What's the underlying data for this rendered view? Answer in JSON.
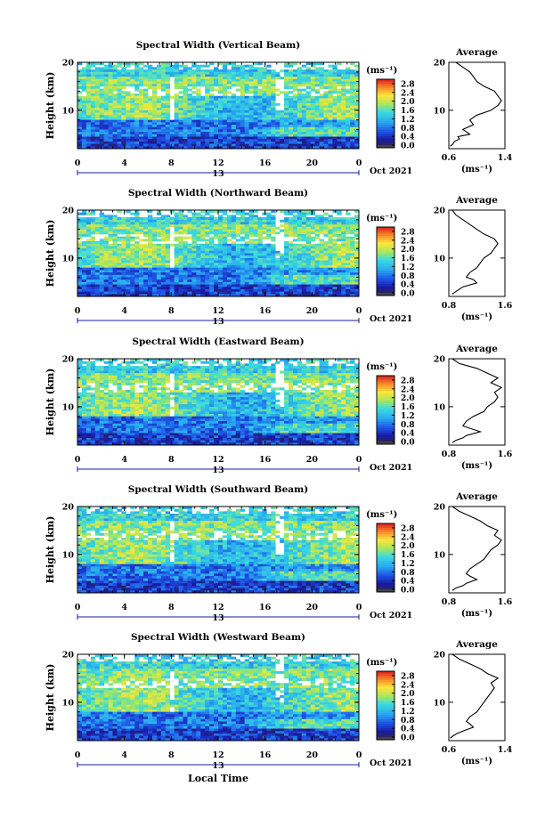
{
  "figure": {
    "footer": "Local Time"
  },
  "chart_data": [
    {
      "type": "heatmap",
      "title": "Spectral Width (Vertical Beam)",
      "ylabel": "Height (km)",
      "ylim": [
        2,
        20
      ],
      "yticks": [
        "20",
        "10"
      ],
      "xlim": [
        0,
        24
      ],
      "xticks": [
        "0",
        "4",
        "8",
        "12",
        "16",
        "20",
        "0"
      ],
      "date_label": "13",
      "month_label": "Oct 2021",
      "colorbar": {
        "unit": "(ms⁻¹)",
        "ticks": [
          "2.8",
          "2.4",
          "2.0",
          "1.6",
          "1.2",
          "0.8",
          "0.4",
          "0.0"
        ],
        "range": [
          0.0,
          3.0
        ]
      },
      "average": {
        "title": "Average",
        "xlabel": "(ms⁻¹)",
        "xticks": [
          "0.6",
          "1.4"
        ],
        "xlim": [
          0.6,
          1.4
        ],
        "yticks": [
          "20",
          "10"
        ],
        "ylim": [
          2,
          20
        ],
        "profile": [
          [
            0.62,
            2.5
          ],
          [
            0.66,
            3
          ],
          [
            0.68,
            3.5
          ],
          [
            0.75,
            4
          ],
          [
            0.73,
            4.5
          ],
          [
            0.9,
            5
          ],
          [
            0.85,
            5.5
          ],
          [
            0.8,
            6
          ],
          [
            0.95,
            7
          ],
          [
            0.9,
            8
          ],
          [
            1.0,
            9
          ],
          [
            1.2,
            10
          ],
          [
            1.3,
            11
          ],
          [
            1.35,
            12
          ],
          [
            1.3,
            13
          ],
          [
            1.25,
            14
          ],
          [
            1.1,
            15
          ],
          [
            1.0,
            16
          ],
          [
            0.95,
            17
          ],
          [
            0.9,
            18
          ],
          [
            0.8,
            19
          ],
          [
            0.7,
            20
          ]
        ]
      }
    },
    {
      "type": "heatmap",
      "title": "Spectral Width (Northward Beam)",
      "ylabel": "Height (km)",
      "ylim": [
        2,
        20
      ],
      "yticks": [
        "20",
        "10"
      ],
      "xlim": [
        0,
        24
      ],
      "xticks": [
        "0",
        "4",
        "8",
        "12",
        "16",
        "20",
        "0"
      ],
      "date_label": "13",
      "month_label": "Oct 2021",
      "colorbar": {
        "unit": "(ms⁻¹)",
        "ticks": [
          "2.8",
          "2.4",
          "2.0",
          "1.6",
          "1.2",
          "0.8",
          "0.4",
          "0.0"
        ],
        "range": [
          0.0,
          3.0
        ]
      },
      "average": {
        "title": "Average",
        "xlabel": "(ms⁻¹)",
        "xticks": [
          "0.8",
          "1.6"
        ],
        "xlim": [
          0.8,
          1.6
        ],
        "yticks": [
          "20",
          "10"
        ],
        "ylim": [
          2,
          20
        ],
        "profile": [
          [
            0.85,
            2.5
          ],
          [
            0.9,
            3
          ],
          [
            0.95,
            3.5
          ],
          [
            1.0,
            4
          ],
          [
            1.2,
            4.8
          ],
          [
            1.15,
            5.5
          ],
          [
            1.05,
            6
          ],
          [
            1.1,
            7
          ],
          [
            1.2,
            8
          ],
          [
            1.25,
            9
          ],
          [
            1.3,
            10
          ],
          [
            1.4,
            11
          ],
          [
            1.45,
            12
          ],
          [
            1.5,
            13
          ],
          [
            1.45,
            14
          ],
          [
            1.3,
            15
          ],
          [
            1.2,
            16
          ],
          [
            1.1,
            17
          ],
          [
            1.0,
            18
          ],
          [
            0.9,
            19
          ],
          [
            0.85,
            20
          ]
        ]
      }
    },
    {
      "type": "heatmap",
      "title": "Spectral Width (Eastward Beam)",
      "ylabel": "Height (km)",
      "ylim": [
        2,
        20
      ],
      "yticks": [
        "20",
        "10"
      ],
      "xlim": [
        0,
        24
      ],
      "xticks": [
        "0",
        "4",
        "8",
        "12",
        "16",
        "20",
        "0"
      ],
      "date_label": "13",
      "month_label": "Oct 2021",
      "colorbar": {
        "unit": "(ms⁻¹)",
        "ticks": [
          "2.8",
          "2.4",
          "2.0",
          "1.6",
          "1.2",
          "0.8",
          "0.4",
          "0.0"
        ],
        "range": [
          0.0,
          3.0
        ]
      },
      "average": {
        "title": "Average",
        "xlabel": "(ms⁻¹)",
        "xticks": [
          "0.8",
          "1.6"
        ],
        "xlim": [
          0.8,
          1.6
        ],
        "yticks": [
          "20",
          "10"
        ],
        "ylim": [
          2,
          20
        ],
        "profile": [
          [
            0.85,
            2.5
          ],
          [
            0.9,
            3
          ],
          [
            1.0,
            3.5
          ],
          [
            1.05,
            4
          ],
          [
            1.25,
            4.8
          ],
          [
            1.1,
            5.5
          ],
          [
            1.0,
            6
          ],
          [
            1.05,
            7
          ],
          [
            1.15,
            8
          ],
          [
            1.3,
            9
          ],
          [
            1.35,
            10
          ],
          [
            1.45,
            11
          ],
          [
            1.5,
            12
          ],
          [
            1.45,
            13
          ],
          [
            1.55,
            14
          ],
          [
            1.4,
            15
          ],
          [
            1.5,
            16
          ],
          [
            1.35,
            17
          ],
          [
            1.2,
            18
          ],
          [
            0.95,
            19
          ],
          [
            0.85,
            20
          ]
        ]
      }
    },
    {
      "type": "heatmap",
      "title": "Spectral Width (Southward Beam)",
      "ylabel": "Height (km)",
      "ylim": [
        2,
        20
      ],
      "yticks": [
        "20",
        "10"
      ],
      "xlim": [
        0,
        24
      ],
      "xticks": [
        "0",
        "4",
        "8",
        "12",
        "16",
        "20",
        "0"
      ],
      "date_label": "13",
      "month_label": "Oct 2021",
      "colorbar": {
        "unit": "(ms⁻¹)",
        "ticks": [
          "2.8",
          "2.4",
          "2.0",
          "1.6",
          "1.2",
          "0.8",
          "0.4",
          "0.0"
        ],
        "range": [
          0.0,
          3.0
        ]
      },
      "average": {
        "title": "Average",
        "xlabel": "(ms⁻¹)",
        "xticks": [
          "0.8",
          "1.6"
        ],
        "xlim": [
          0.8,
          1.6
        ],
        "yticks": [
          "20",
          "10"
        ],
        "ylim": [
          2,
          20
        ],
        "profile": [
          [
            0.85,
            2.5
          ],
          [
            0.9,
            3
          ],
          [
            1.0,
            3.5
          ],
          [
            1.05,
            4
          ],
          [
            1.2,
            4.8
          ],
          [
            1.1,
            5.5
          ],
          [
            1.05,
            6
          ],
          [
            1.1,
            7
          ],
          [
            1.2,
            8
          ],
          [
            1.3,
            9
          ],
          [
            1.35,
            10
          ],
          [
            1.4,
            11
          ],
          [
            1.5,
            12
          ],
          [
            1.55,
            13
          ],
          [
            1.45,
            14
          ],
          [
            1.5,
            15
          ],
          [
            1.35,
            16
          ],
          [
            1.25,
            17
          ],
          [
            1.1,
            18
          ],
          [
            0.95,
            19
          ],
          [
            0.85,
            20
          ]
        ]
      }
    },
    {
      "type": "heatmap",
      "title": "Spectral Width (Westward Beam)",
      "ylabel": "Height (km)",
      "ylim": [
        2,
        20
      ],
      "yticks": [
        "20",
        "10"
      ],
      "xlim": [
        0,
        24
      ],
      "xticks": [
        "0",
        "4",
        "8",
        "12",
        "16",
        "20",
        "0"
      ],
      "date_label": "13",
      "month_label": "Oct 2021",
      "colorbar": {
        "unit": "(ms⁻¹)",
        "ticks": [
          "2.8",
          "2.4",
          "2.0",
          "1.6",
          "1.2",
          "0.8",
          "0.4",
          "0.0"
        ],
        "range": [
          0.0,
          3.0
        ]
      },
      "average": {
        "title": "Average",
        "xlabel": "(ms⁻¹)",
        "xticks": [
          "0.6",
          "1.4"
        ],
        "xlim": [
          0.6,
          1.4
        ],
        "yticks": [
          "20",
          "10"
        ],
        "ylim": [
          2,
          20
        ],
        "profile": [
          [
            0.62,
            2.5
          ],
          [
            0.66,
            3
          ],
          [
            0.72,
            3.5
          ],
          [
            0.8,
            4
          ],
          [
            0.95,
            4.8
          ],
          [
            0.9,
            5.5
          ],
          [
            0.85,
            6
          ],
          [
            0.9,
            7
          ],
          [
            1.0,
            8
          ],
          [
            1.05,
            9
          ],
          [
            1.1,
            10
          ],
          [
            1.15,
            11
          ],
          [
            1.2,
            12
          ],
          [
            1.25,
            13
          ],
          [
            1.2,
            14
          ],
          [
            1.3,
            15
          ],
          [
            1.15,
            16
          ],
          [
            1.05,
            17
          ],
          [
            0.9,
            18
          ],
          [
            0.75,
            19
          ],
          [
            0.65,
            20
          ]
        ]
      }
    }
  ]
}
